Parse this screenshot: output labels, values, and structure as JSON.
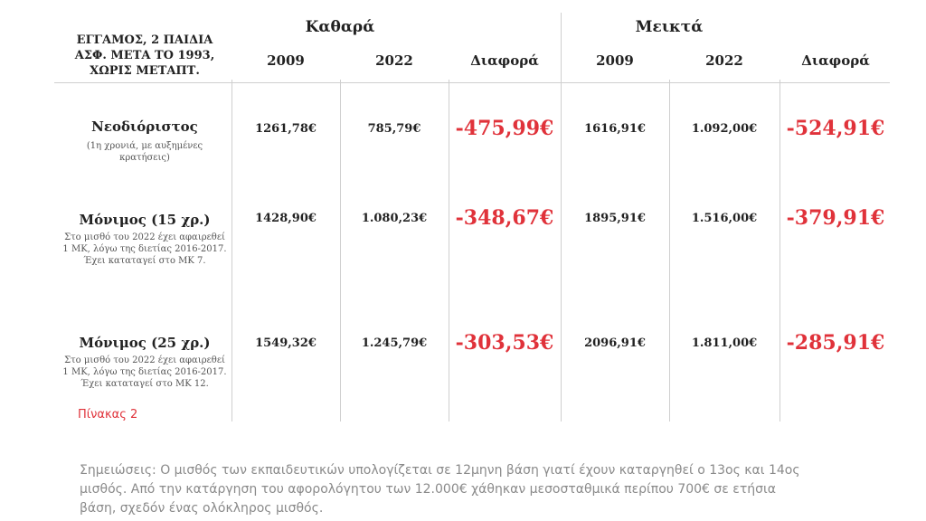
{
  "corner_label": [
    "ΕΓΓΑΜΟΣ, 2 ΠΑΙΔΙΑ",
    "ΑΣΦ. ΜΕΤΑ ΤΟ 1993,",
    "ΧΩΡΙΣ ΜΕΤΑΠΤ."
  ],
  "groups": {
    "net": "Καθαρά",
    "gross": "Μεικτά"
  },
  "columns": [
    "2009",
    "2022",
    "Διαφορά",
    "2009",
    "2022",
    "Διαφορά"
  ],
  "rows": [
    {
      "title": "Νεοδιόριστος",
      "note": [
        "(1η χρονιά, με αυξημένες",
        "κρατήσεις)"
      ],
      "values": [
        "1261,78€",
        "785,79€",
        "-475,99€",
        "1616,91€",
        "1.092,00€",
        "-524,91€"
      ]
    },
    {
      "title": "Μόνιμος (15 χρ.)",
      "note": [
        "Στο μισθό του 2022 έχει αφαιρεθεί",
        "1 ΜΚ, λόγω της διετίας 2016-2017.",
        "Έχει καταταγεί στο ΜΚ 7."
      ],
      "values": [
        "1428,90€",
        "1.080,23€",
        "-348,67€",
        "1895,91€",
        "1.516,00€",
        "-379,91€"
      ]
    },
    {
      "title": "Μόνιμος (25 χρ.)",
      "note": [
        "Στο μισθό του 2022 έχει αφαιρεθεί",
        "1 ΜΚ, λόγω της διετίας 2016-2017.",
        "Έχει καταταγεί στο ΜΚ 12."
      ],
      "values": [
        "1549,32€",
        "1.245,79€",
        "-303,53€",
        "2096,91€",
        "1.811,00€",
        "-285,91€"
      ]
    }
  ],
  "caption": "Πίνακας 2",
  "notes": [
    "Σημειώσεις: Ο μισθός των εκπαιδευτικών υπολογίζεται σε 12μηνη βάση γιατί έχουν καταργηθεί ο 13ος και 14ος",
    "μισθός. Από την κατάργηση  του αφορολόγητου των 12.000€ χάθηκαν μεσοσταθμικά περίπου 700€ σε ετήσια",
    "βάση, σχεδόν ένας ολόκληρος μισθός."
  ],
  "colors": {
    "accent_red": "#e0323a",
    "grid": "#cfcfcf",
    "note_gray": "#8a8a8a"
  }
}
